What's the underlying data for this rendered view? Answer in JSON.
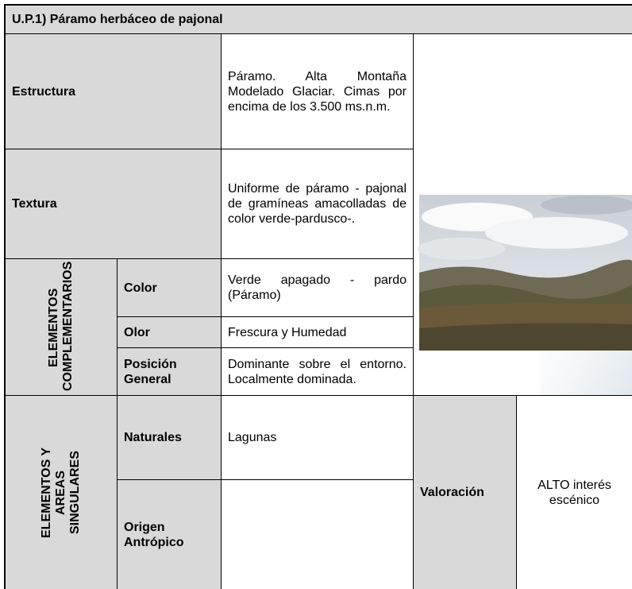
{
  "title": "U.P.1) Páramo herbáceo de pajonal",
  "rows": [
    {
      "label": "Estructura",
      "text": "Páramo. Alta Montaña Modelado Glaciar. Cimas por encima de los 3.500 ms.n.m."
    },
    {
      "label": "Textura",
      "text": "Uniforme de páramo - pajonal de gramíneas amacolladas de color verde-pardusco-."
    }
  ],
  "groups": [
    {
      "label": "ELEMENTOS COMPLEMENTARIOS",
      "rows": [
        {
          "label": "Color",
          "text": "Verde apagado - pardo (Páramo)"
        },
        {
          "label": "Olor",
          "text": "Frescura y Humedad"
        },
        {
          "label": "Posición General",
          "text": "Dominante sobre el entorno. Localmente dominada."
        }
      ]
    },
    {
      "label": "ELEMENTOS Y AREAS SINGULARES",
      "rows": [
        {
          "label": "Naturales",
          "text": "Lagunas"
        },
        {
          "label": "Origen Antrópico"
        }
      ]
    }
  ],
  "valuation": {
    "label": "Valoración",
    "value": "ALTO interés escénico"
  }
}
